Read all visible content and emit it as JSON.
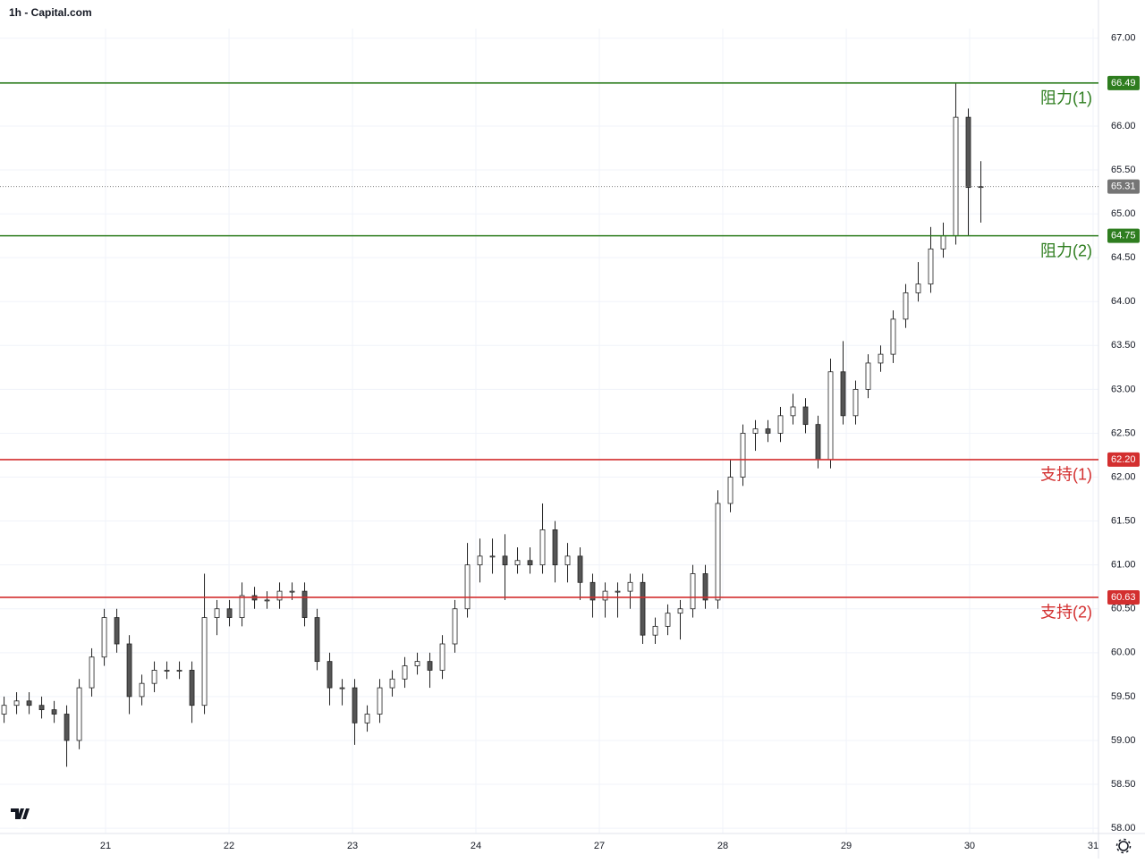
{
  "chart_data": {
    "type": "candlestick",
    "title": "1h - Capital.com",
    "x": [
      0,
      1,
      2,
      3,
      4,
      5,
      6,
      7,
      8,
      9,
      10,
      11,
      12,
      13,
      14,
      15,
      16,
      17,
      18,
      19,
      20,
      21,
      22,
      23,
      24,
      25,
      26,
      27,
      28,
      29,
      30,
      31,
      32,
      33,
      34,
      35,
      36,
      37,
      38,
      39,
      40,
      41,
      42,
      43,
      44,
      45,
      46,
      47,
      48,
      49,
      50,
      51,
      52,
      53,
      54,
      55,
      56,
      57,
      58,
      59,
      60,
      61,
      62,
      63,
      64,
      65,
      66,
      67,
      68,
      69,
      70,
      71,
      72,
      73,
      74,
      75,
      76,
      77,
      78
    ],
    "open": [
      59.3,
      59.4,
      59.45,
      59.4,
      59.35,
      59.3,
      59.0,
      59.6,
      59.95,
      60.4,
      60.1,
      59.5,
      59.65,
      59.8,
      59.8,
      59.8,
      59.4,
      60.4,
      60.5,
      60.4,
      60.65,
      60.6,
      60.6,
      60.7,
      60.7,
      60.4,
      59.9,
      59.6,
      59.6,
      59.2,
      59.3,
      59.6,
      59.7,
      59.85,
      59.9,
      59.8,
      60.1,
      60.5,
      61.0,
      61.1,
      61.1,
      61.0,
      61.05,
      61.0,
      61.4,
      61.0,
      61.1,
      60.8,
      60.6,
      60.7,
      60.7,
      60.8,
      60.2,
      60.3,
      60.45,
      60.5,
      60.9,
      60.6,
      61.7,
      62.0,
      62.5,
      62.55,
      62.5,
      62.7,
      62.8,
      62.6,
      62.2,
      63.2,
      62.7,
      63.0,
      63.3,
      63.4,
      63.8,
      64.1,
      64.2,
      64.6,
      64.75,
      66.1,
      65.3
    ],
    "high": [
      59.5,
      59.55,
      59.55,
      59.5,
      59.45,
      59.4,
      59.7,
      60.05,
      60.5,
      60.5,
      60.2,
      59.75,
      59.9,
      59.9,
      59.9,
      59.9,
      60.9,
      60.6,
      60.6,
      60.8,
      60.75,
      60.7,
      60.8,
      60.8,
      60.8,
      60.5,
      60.0,
      59.7,
      59.7,
      59.4,
      59.7,
      59.8,
      59.95,
      60.0,
      60.0,
      60.2,
      60.6,
      61.25,
      61.3,
      61.3,
      61.35,
      61.2,
      61.2,
      61.7,
      61.5,
      61.25,
      61.2,
      60.9,
      60.8,
      60.8,
      60.9,
      60.9,
      60.4,
      60.55,
      60.6,
      61.0,
      61.0,
      61.85,
      62.2,
      62.6,
      62.65,
      62.65,
      62.8,
      62.95,
      62.9,
      62.7,
      63.35,
      63.55,
      63.1,
      63.4,
      63.5,
      63.9,
      64.2,
      64.45,
      64.85,
      64.9,
      66.49,
      66.2,
      65.6
    ],
    "low": [
      59.2,
      59.3,
      59.3,
      59.25,
      59.2,
      58.7,
      58.9,
      59.5,
      59.85,
      60.0,
      59.3,
      59.4,
      59.55,
      59.7,
      59.7,
      59.2,
      59.3,
      60.2,
      60.3,
      60.3,
      60.5,
      60.5,
      60.5,
      60.6,
      60.3,
      59.8,
      59.4,
      59.4,
      58.95,
      59.1,
      59.2,
      59.5,
      59.6,
      59.75,
      59.6,
      59.7,
      60.0,
      60.4,
      60.8,
      60.9,
      60.6,
      60.9,
      60.9,
      60.9,
      60.8,
      60.8,
      60.6,
      60.4,
      60.4,
      60.4,
      60.5,
      60.1,
      60.1,
      60.2,
      60.15,
      60.4,
      60.5,
      60.5,
      61.6,
      61.9,
      62.3,
      62.4,
      62.4,
      62.6,
      62.5,
      62.1,
      62.1,
      62.6,
      62.6,
      62.9,
      63.2,
      63.3,
      63.7,
      64.0,
      64.1,
      64.5,
      64.65,
      64.75,
      64.9
    ],
    "close": [
      59.4,
      59.45,
      59.4,
      59.35,
      59.3,
      59.0,
      59.6,
      59.95,
      60.4,
      60.1,
      59.5,
      59.65,
      59.8,
      59.8,
      59.8,
      59.4,
      60.4,
      60.5,
      60.4,
      60.65,
      60.6,
      60.6,
      60.7,
      60.7,
      60.4,
      59.9,
      59.6,
      59.6,
      59.2,
      59.3,
      59.6,
      59.7,
      59.85,
      59.9,
      59.8,
      60.1,
      60.5,
      61.0,
      61.1,
      61.1,
      61.0,
      61.05,
      61.0,
      61.4,
      61.0,
      61.1,
      60.8,
      60.6,
      60.7,
      60.7,
      60.8,
      60.2,
      60.3,
      60.45,
      60.5,
      60.9,
      60.6,
      61.7,
      62.0,
      62.5,
      62.55,
      62.5,
      62.7,
      62.8,
      62.6,
      62.2,
      63.2,
      62.7,
      63.0,
      63.3,
      63.4,
      63.8,
      64.1,
      64.2,
      64.6,
      64.75,
      66.1,
      65.3,
      65.31
    ],
    "up_color": "#ffffff",
    "down_color": "#555555",
    "wick_color": "#222222",
    "xlim": [
      -0.29,
      87.43
    ],
    "xticks": [
      {
        "value": 8.14,
        "label": "21"
      },
      {
        "value": 18.0,
        "label": "22"
      },
      {
        "value": 27.86,
        "label": "23"
      },
      {
        "value": 37.71,
        "label": "24"
      },
      {
        "value": 47.57,
        "label": "27"
      },
      {
        "value": 57.43,
        "label": "28"
      },
      {
        "value": 67.29,
        "label": "29"
      },
      {
        "value": 77.14,
        "label": "30"
      },
      {
        "value": 87.0,
        "label": "31"
      }
    ],
    "ylim": [
      57.94,
      67.11
    ],
    "yticks": [
      {
        "value": 58,
        "label": "58.00"
      },
      {
        "value": 58.5,
        "label": "58.50"
      },
      {
        "value": 59,
        "label": "59.00"
      },
      {
        "value": 59.5,
        "label": "59.50"
      },
      {
        "value": 60,
        "label": "60.00"
      },
      {
        "value": 60.5,
        "label": "60.50"
      },
      {
        "value": 61,
        "label": "61.00"
      },
      {
        "value": 61.5,
        "label": "61.50"
      },
      {
        "value": 62,
        "label": "62.00"
      },
      {
        "value": 62.5,
        "label": "62.50"
      },
      {
        "value": 63,
        "label": "63.00"
      },
      {
        "value": 63.5,
        "label": "63.50"
      },
      {
        "value": 64,
        "label": "64.00"
      },
      {
        "value": 64.5,
        "label": "64.50"
      },
      {
        "value": 65,
        "label": "65.00"
      },
      {
        "value": 65.5,
        "label": "65.50"
      },
      {
        "value": 66,
        "label": "66.00"
      },
      {
        "value": 66.5,
        "label": "66.50"
      },
      {
        "value": 67,
        "label": "67.00"
      }
    ],
    "grid": true,
    "levels": [
      {
        "name": "阻力(1)",
        "value": 66.49,
        "label": "66.49",
        "color": "#2e7d1f"
      },
      {
        "name": "阻力(2)",
        "value": 64.75,
        "label": "64.75",
        "color": "#2e7d1f"
      },
      {
        "name": "支持(1)",
        "value": 62.2,
        "label": "62.20",
        "color": "#d32f2f"
      },
      {
        "name": "支持(2)",
        "value": 60.63,
        "label": "60.63",
        "color": "#d32f2f"
      }
    ],
    "last_price": {
      "value": 65.31,
      "label": "65.31",
      "color": "#757575"
    }
  }
}
